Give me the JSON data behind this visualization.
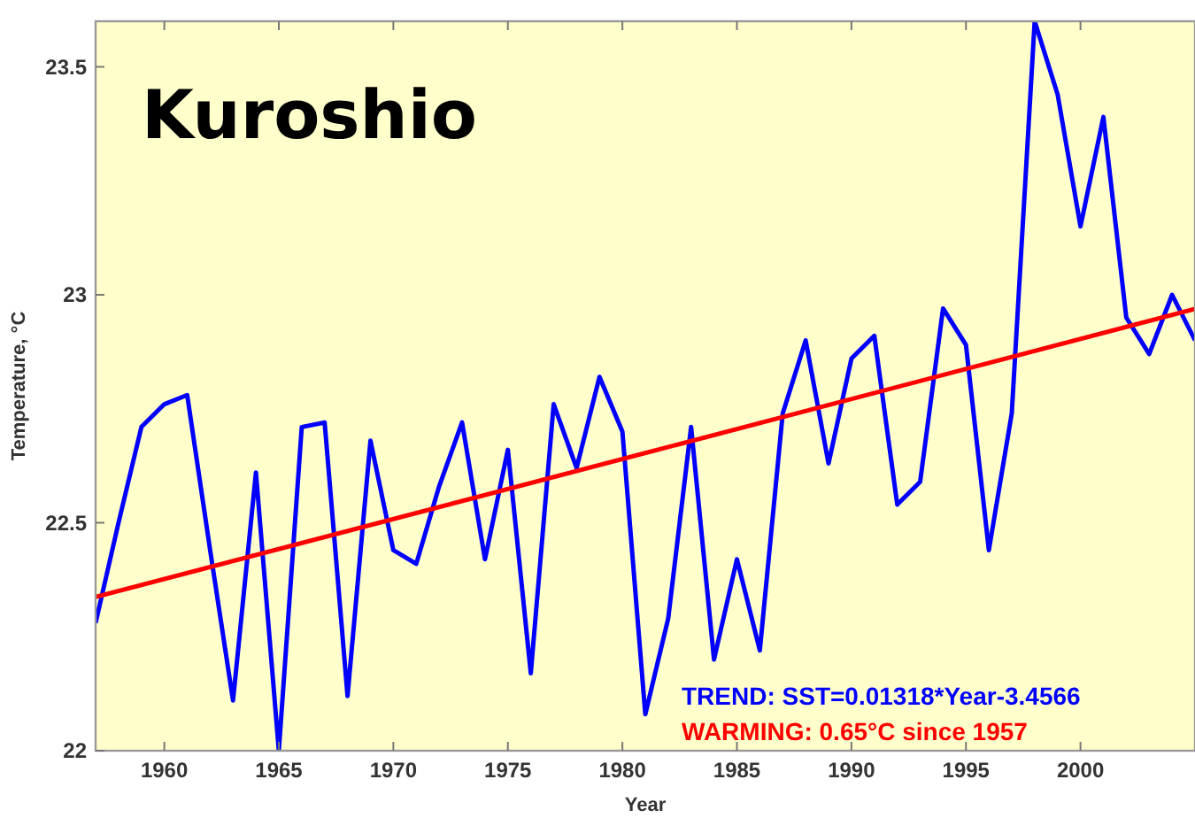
{
  "chart_data": {
    "type": "line",
    "title": "Kuroshio",
    "xlabel": "Year",
    "ylabel": "Temperature, °C",
    "x": [
      1957,
      1958,
      1959,
      1960,
      1961,
      1962,
      1963,
      1964,
      1965,
      1966,
      1967,
      1968,
      1969,
      1970,
      1971,
      1972,
      1973,
      1974,
      1975,
      1976,
      1977,
      1978,
      1979,
      1980,
      1981,
      1982,
      1983,
      1984,
      1985,
      1986,
      1987,
      1988,
      1989,
      1990,
      1991,
      1992,
      1993,
      1994,
      1995,
      1996,
      1997,
      1998,
      1999,
      2000,
      2001,
      2002,
      2003,
      2004,
      2005
    ],
    "series": [
      {
        "color": "#0000ff",
        "values": [
          22.28,
          22.5,
          22.71,
          22.76,
          22.78,
          22.44,
          22.11,
          22.61,
          22.0,
          22.71,
          22.72,
          22.12,
          22.68,
          22.44,
          22.41,
          22.58,
          22.72,
          22.42,
          22.66,
          22.17,
          22.76,
          22.62,
          22.82,
          22.7,
          22.08,
          22.29,
          22.71,
          22.2,
          22.42,
          22.22,
          22.74,
          22.9,
          22.63,
          22.86,
          22.91,
          22.54,
          22.59,
          22.97,
          22.89,
          22.44,
          22.74,
          23.6,
          23.44,
          23.15,
          23.39,
          22.95,
          22.87,
          23.0,
          22.9
        ]
      },
      {
        "type": "line",
        "color": "#ff0000",
        "x": [
          1957,
          2005
        ],
        "values": [
          22.337,
          22.969
        ]
      }
    ],
    "xlim": [
      1957,
      2005
    ],
    "xticks": [
      1960,
      1965,
      1970,
      1975,
      1980,
      1985,
      1990,
      1995,
      2000
    ],
    "ylim": [
      22,
      23.6
    ],
    "yticks": [
      22,
      22.5,
      23,
      23.5
    ],
    "grid": false,
    "marker": "none",
    "line_style": "solid",
    "annotations": [
      "TREND:  SST=0.01318*Year-3.4566",
      "WARMING: 0.65°C since 1957"
    ]
  }
}
